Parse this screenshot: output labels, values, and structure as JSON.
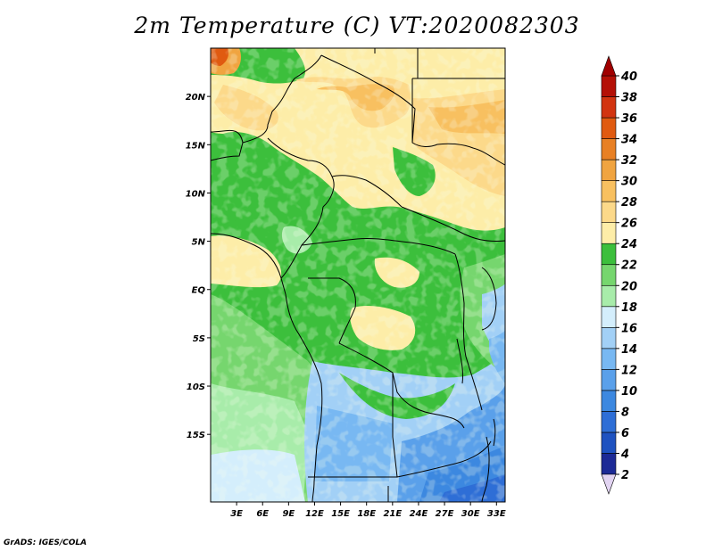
{
  "title": "2m Temperature (C) VT:2020082303",
  "credit": "GrADS: IGES/COLA",
  "map": {
    "lon_range": [
      0,
      34
    ],
    "lat_range": [
      -22,
      25
    ],
    "lon_ticks": [
      3,
      6,
      9,
      12,
      15,
      18,
      21,
      24,
      27,
      30,
      33
    ],
    "lon_tick_labels": [
      "3E",
      "6E",
      "9E",
      "12E",
      "15E",
      "18E",
      "21E",
      "24E",
      "27E",
      "30E",
      "33E"
    ],
    "lat_ticks": [
      20,
      15,
      10,
      5,
      0,
      -5,
      -10,
      -15
    ],
    "lat_tick_labels": [
      "20N",
      "15N",
      "10N",
      "5N",
      "EQ",
      "5S",
      "10S",
      "15S"
    ]
  },
  "colorbar": {
    "levels": [
      2,
      4,
      6,
      8,
      10,
      12,
      14,
      16,
      18,
      20,
      22,
      24,
      26,
      28,
      30,
      32,
      34,
      36,
      38,
      40
    ],
    "labels": [
      "2",
      "4",
      "6",
      "8",
      "10",
      "12",
      "14",
      "16",
      "18",
      "20",
      "22",
      "24",
      "26",
      "28",
      "30",
      "32",
      "34",
      "36",
      "38",
      "40"
    ],
    "colors": [
      "#1c2a96",
      "#1e52c0",
      "#2e6ed6",
      "#3c88e0",
      "#5aa0ea",
      "#78b8f2",
      "#a2d0f6",
      "#d4eefc",
      "#a8ecaa",
      "#76d66e",
      "#3cbf3c",
      "#fdeda8",
      "#fcd98a",
      "#f8c060",
      "#f0a440",
      "#e88024",
      "#e05a10",
      "#d23410",
      "#b41006"
    ],
    "under_color": "#e2d4f2",
    "over_color": "#a00000"
  }
}
